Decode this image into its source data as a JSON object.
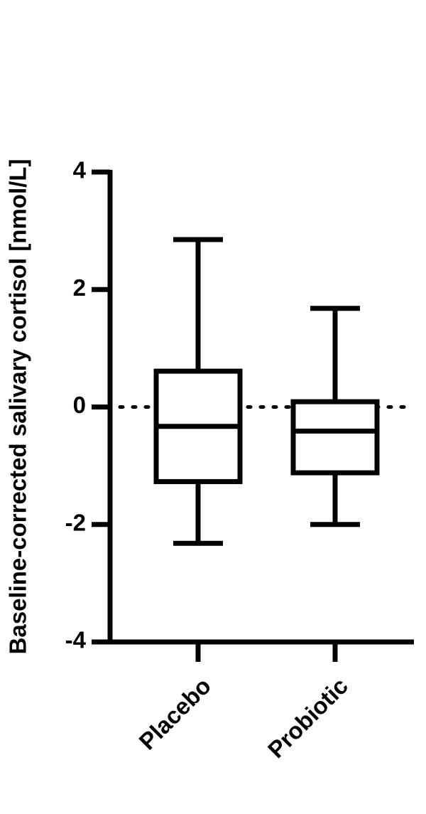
{
  "chart_data": {
    "type": "box",
    "y_label": "Baseline-corrected salivary cortisol [nmol/L]",
    "categories": [
      "Placebo",
      "Probiotic"
    ],
    "min": [
      -2.32,
      -2.0
    ],
    "q1": [
      -1.27,
      -1.12
    ],
    "median": [
      -0.33,
      -0.41
    ],
    "q3": [
      0.61,
      0.09
    ],
    "max": [
      2.85,
      1.68
    ],
    "color": "#000000",
    "reference_line": 0,
    "ylim": [
      -4,
      4
    ],
    "yticks": [
      -4,
      -2,
      0,
      2,
      4
    ]
  }
}
